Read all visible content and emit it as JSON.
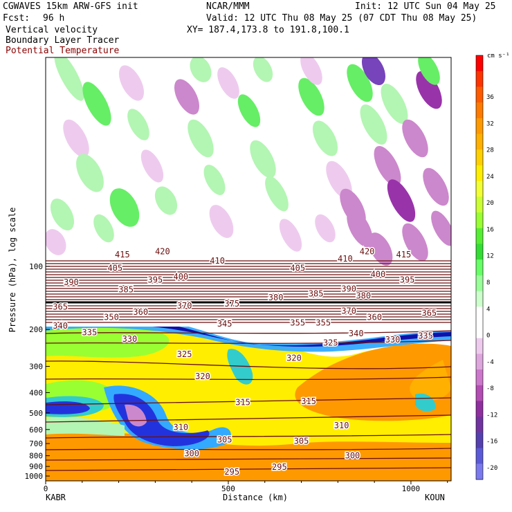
{
  "header": {
    "model": "CGWAVES 15km ARW-GFS init",
    "center": "NCAR/MMM",
    "init": "Init: 12 UTC Sun 04 May 25",
    "fcst_label": "Fcst:",
    "fcst_value": "96 h",
    "valid": "Valid: 12 UTC Thu 08 May 25 (07 CDT Thu 08 May 25)",
    "field1": "Vertical velocity",
    "field2": "Boundary Layer Tracer",
    "field3": "Potential Temperature",
    "xy": "XY= 187.4,173.8 to 191.8,100.1"
  },
  "colors": {
    "theta_contour": "#6b0f0f",
    "field3_text": "#8b0000"
  },
  "chart_data": {
    "type": "heatmap",
    "xlabel": "Distance (km)",
    "ylabel": "Pressure (hPa), log scale",
    "xlim": [
      0,
      1110
    ],
    "x_ticks": [
      0,
      500,
      1000
    ],
    "y_ticks": [
      100,
      200,
      300,
      400,
      500,
      600,
      700,
      800,
      900,
      1000
    ],
    "left_station": "KABR",
    "right_station": "KOUN",
    "colorbar": {
      "units": "cm s⁻¹",
      "ticks": [
        36,
        32,
        28,
        24,
        20,
        16,
        12,
        8,
        4,
        0,
        -4,
        -8,
        -12,
        -16,
        -20
      ],
      "colors": [
        "#ff0000",
        "#ff3300",
        "#ff5a00",
        "#ff7a00",
        "#ff9900",
        "#ffb000",
        "#ffd000",
        "#ffee00",
        "#f2ff33",
        "#ccff33",
        "#99ff33",
        "#55ee33",
        "#33dd33",
        "#66ff66",
        "#99ff99",
        "#ccffcc",
        "#ffffff",
        "#ffffff",
        "#eecbee",
        "#dda6dd",
        "#cc77cc",
        "#b34cb3",
        "#8f2f9f",
        "#7033a0",
        "#5540b0",
        "#5a5ad8",
        "#7a7aee"
      ]
    },
    "theta_labels": [
      {
        "value": "415",
        "x": 210,
        "p": 88
      },
      {
        "value": "420",
        "x": 320,
        "p": 85
      },
      {
        "value": "410",
        "x": 470,
        "p": 94
      },
      {
        "value": "420",
        "x": 880,
        "p": 85
      },
      {
        "value": "415",
        "x": 980,
        "p": 88
      },
      {
        "value": "410",
        "x": 820,
        "p": 92
      },
      {
        "value": "405",
        "x": 190,
        "p": 102
      },
      {
        "value": "405",
        "x": 690,
        "p": 102
      },
      {
        "value": "390",
        "x": 70,
        "p": 119
      },
      {
        "value": "395",
        "x": 300,
        "p": 116
      },
      {
        "value": "400",
        "x": 370,
        "p": 112
      },
      {
        "value": "400",
        "x": 910,
        "p": 109
      },
      {
        "value": "395",
        "x": 990,
        "p": 116
      },
      {
        "value": "385",
        "x": 220,
        "p": 129
      },
      {
        "value": "385",
        "x": 740,
        "p": 135
      },
      {
        "value": "390",
        "x": 830,
        "p": 128
      },
      {
        "value": "380",
        "x": 870,
        "p": 138
      },
      {
        "value": "380",
        "x": 630,
        "p": 141
      },
      {
        "value": "375",
        "x": 510,
        "p": 151
      },
      {
        "value": "370",
        "x": 380,
        "p": 154
      },
      {
        "value": "365",
        "x": 40,
        "p": 156
      },
      {
        "value": "360",
        "x": 260,
        "p": 165
      },
      {
        "value": "350",
        "x": 180,
        "p": 175
      },
      {
        "value": "370",
        "x": 830,
        "p": 163
      },
      {
        "value": "360",
        "x": 900,
        "p": 175
      },
      {
        "value": "365",
        "x": 1050,
        "p": 167
      },
      {
        "value": "345",
        "x": 490,
        "p": 188
      },
      {
        "value": "355",
        "x": 690,
        "p": 186
      },
      {
        "value": "355",
        "x": 760,
        "p": 186
      },
      {
        "value": "340",
        "x": 40,
        "p": 192
      },
      {
        "value": "335",
        "x": 120,
        "p": 207
      },
      {
        "value": "330",
        "x": 230,
        "p": 222
      },
      {
        "value": "340",
        "x": 850,
        "p": 209
      },
      {
        "value": "330",
        "x": 950,
        "p": 224
      },
      {
        "value": "335",
        "x": 1040,
        "p": 215
      },
      {
        "value": "325",
        "x": 780,
        "p": 232
      },
      {
        "value": "325",
        "x": 380,
        "p": 263
      },
      {
        "value": "320",
        "x": 680,
        "p": 274
      },
      {
        "value": "320",
        "x": 430,
        "p": 335
      },
      {
        "value": "315",
        "x": 540,
        "p": 445
      },
      {
        "value": "315",
        "x": 720,
        "p": 440
      },
      {
        "value": "310",
        "x": 370,
        "p": 585
      },
      {
        "value": "310",
        "x": 810,
        "p": 575
      },
      {
        "value": "305",
        "x": 490,
        "p": 670
      },
      {
        "value": "305",
        "x": 700,
        "p": 680
      },
      {
        "value": "300",
        "x": 400,
        "p": 780
      },
      {
        "value": "300",
        "x": 840,
        "p": 800
      },
      {
        "value": "295",
        "x": 510,
        "p": 955
      },
      {
        "value": "295",
        "x": 640,
        "p": 905
      }
    ]
  }
}
